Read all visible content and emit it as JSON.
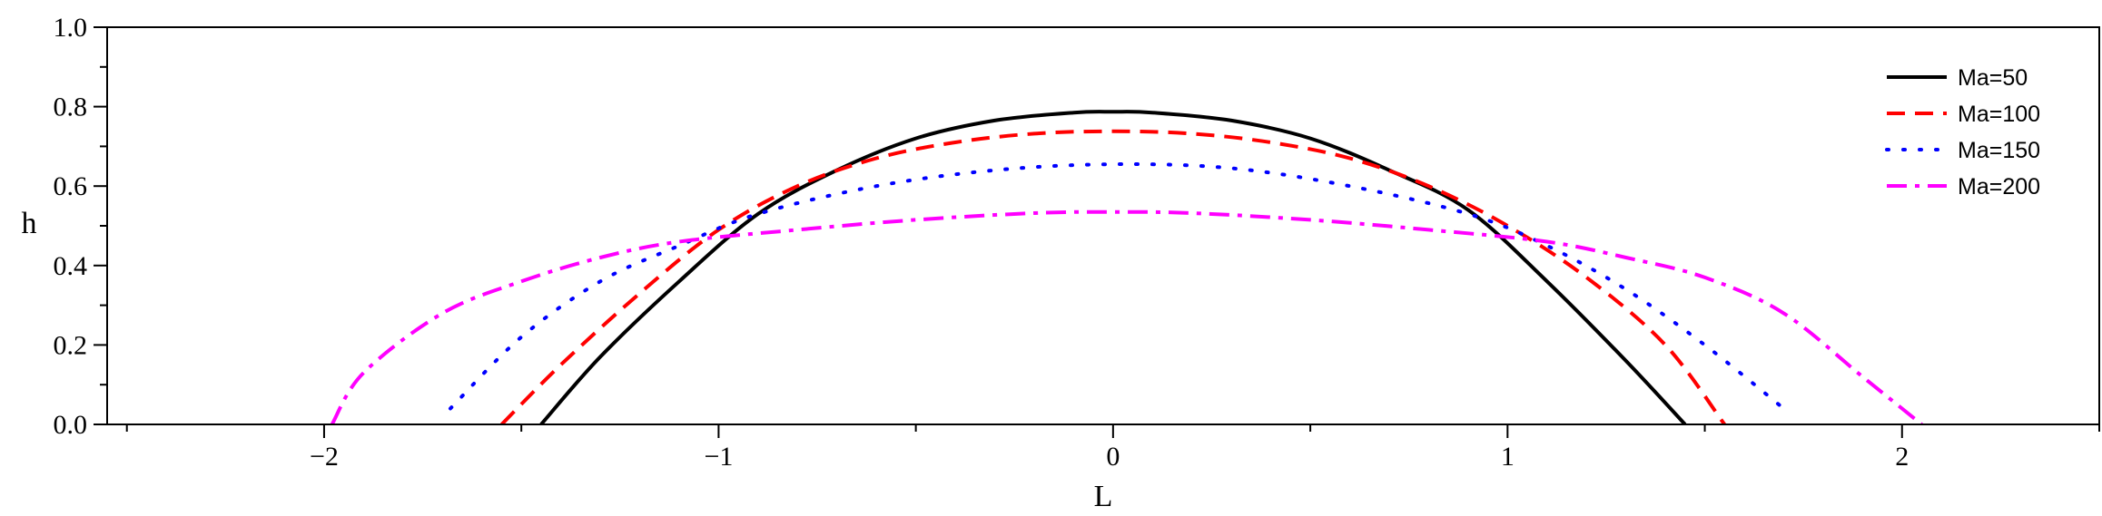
{
  "chart_data": {
    "type": "line",
    "xlabel": "L",
    "ylabel": "h",
    "xlim": [
      -2.55,
      2.5
    ],
    "ylim": [
      0.0,
      1.0
    ],
    "x_ticks": [
      -2,
      -1,
      0,
      1,
      2
    ],
    "x_tick_labels": [
      "−2",
      "−1",
      "0",
      "1",
      "2"
    ],
    "y_ticks": [
      0.0,
      0.2,
      0.4,
      0.6,
      0.8,
      1.0
    ],
    "y_tick_labels": [
      "0.0",
      "0.2",
      "0.4",
      "0.6",
      "0.8",
      "1.0"
    ],
    "grid": false,
    "legend_position": "top-right",
    "series": [
      {
        "name": "Ma=50",
        "color": "#000000",
        "style": "solid",
        "x": [
          -1.45,
          -1.3,
          -1.1,
          -0.9,
          -0.7,
          -0.5,
          -0.3,
          -0.1,
          0.0,
          0.1,
          0.3,
          0.5,
          0.7,
          0.9,
          1.1,
          1.3,
          1.45
        ],
        "y": [
          0.0,
          0.17,
          0.36,
          0.53,
          0.64,
          0.72,
          0.765,
          0.785,
          0.787,
          0.785,
          0.765,
          0.72,
          0.64,
          0.54,
          0.36,
          0.16,
          0.0
        ]
      },
      {
        "name": "Ma=100",
        "color": "#ff0000",
        "style": "dashed",
        "x": [
          -1.55,
          -1.4,
          -1.2,
          -1.0,
          -0.8,
          -0.6,
          -0.4,
          -0.2,
          0.0,
          0.2,
          0.4,
          0.6,
          0.8,
          1.0,
          1.2,
          1.4,
          1.55
        ],
        "y": [
          0.0,
          0.15,
          0.33,
          0.49,
          0.6,
          0.67,
          0.71,
          0.732,
          0.738,
          0.732,
          0.71,
          0.67,
          0.6,
          0.5,
          0.37,
          0.2,
          0.0
        ]
      },
      {
        "name": "Ma=150",
        "color": "#0000ff",
        "style": "dotted",
        "x": [
          -1.68,
          -1.5,
          -1.3,
          -1.1,
          -0.9,
          -0.6,
          -0.3,
          0.0,
          0.3,
          0.6,
          0.9,
          1.1,
          1.3,
          1.5,
          1.7
        ],
        "y": [
          0.04,
          0.22,
          0.36,
          0.45,
          0.53,
          0.6,
          0.64,
          0.655,
          0.645,
          0.6,
          0.53,
          0.45,
          0.34,
          0.2,
          0.04
        ]
      },
      {
        "name": "Ma=200",
        "color": "#ff00ff",
        "style": "dashdot",
        "x": [
          -1.98,
          -1.9,
          -1.7,
          -1.5,
          -1.3,
          -1.1,
          -0.8,
          -0.5,
          -0.2,
          0.0,
          0.2,
          0.5,
          0.8,
          1.1,
          1.3,
          1.5,
          1.7,
          1.9,
          2.05
        ],
        "y": [
          0.0,
          0.13,
          0.28,
          0.36,
          0.42,
          0.46,
          0.49,
          0.515,
          0.532,
          0.535,
          0.532,
          0.515,
          0.49,
          0.46,
          0.42,
          0.37,
          0.28,
          0.12,
          0.0
        ]
      }
    ]
  }
}
